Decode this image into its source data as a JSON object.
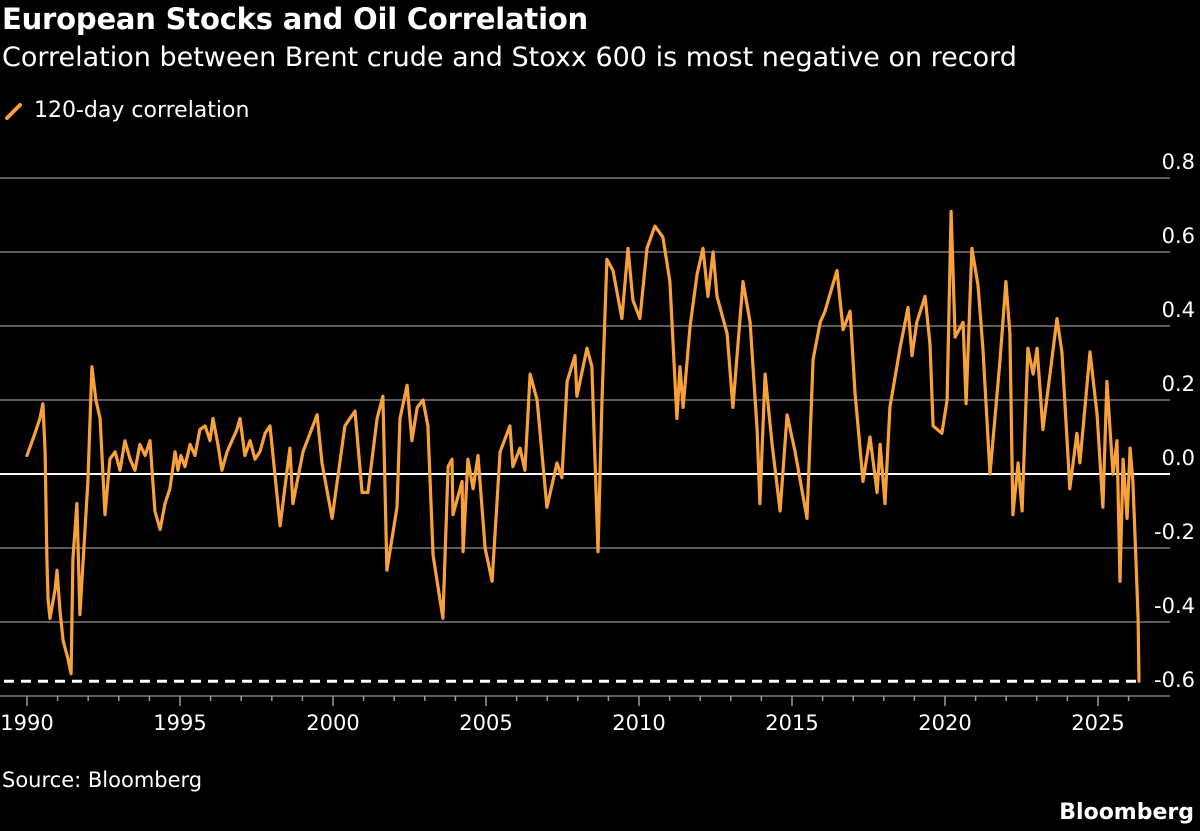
{
  "chart_data": {
    "type": "line",
    "title": "European Stocks and Oil Correlation",
    "subtitle": "Correlation between Brent crude and Stoxx 600 is most negative on record",
    "source": "Source: Bloomberg",
    "logo": "Bloomberg",
    "xlabel": "",
    "ylabel": "",
    "xlim": [
      1990,
      2026.6
    ],
    "ylim": [
      -0.6,
      0.8
    ],
    "x_ticks": [
      "1990",
      "1995",
      "2000",
      "2005",
      "2010",
      "2015",
      "2020",
      "2025"
    ],
    "y_ticks": [
      "0.8",
      "0.6",
      "0.4",
      "0.2",
      "0.0",
      "-0.2",
      "-0.4",
      "-0.6"
    ],
    "grid": true,
    "legend_position": "top-left",
    "reference_line": {
      "value": -0.56,
      "style": "dashed",
      "color": "#ffffff"
    },
    "series": [
      {
        "name": "120-day correlation",
        "color": "#f8a03a",
        "x": [
          1990.0,
          1990.26,
          1990.42,
          1990.52,
          1990.59,
          1990.65,
          1990.69,
          1990.75,
          1990.92,
          1990.98,
          1991.08,
          1991.18,
          1991.34,
          1991.44,
          1991.5,
          1991.63,
          1991.73,
          1991.99,
          1992.12,
          1992.25,
          1992.39,
          1992.55,
          1992.71,
          1992.88,
          1993.04,
          1993.2,
          1993.37,
          1993.53,
          1993.69,
          1993.86,
          1994.02,
          1994.18,
          1994.35,
          1994.51,
          1994.67,
          1994.84,
          1994.93,
          1995.03,
          1995.16,
          1995.33,
          1995.49,
          1995.65,
          1995.82,
          1995.98,
          1996.08,
          1996.24,
          1996.37,
          1996.54,
          1996.7,
          1996.86,
          1996.96,
          1997.12,
          1997.29,
          1997.45,
          1997.61,
          1997.78,
          1997.94,
          1998.27,
          1998.59,
          1998.69,
          1999.02,
          1999.48,
          1999.64,
          1999.97,
          2000.39,
          2000.72,
          2000.95,
          2001.14,
          2001.44,
          2001.63,
          2001.76,
          2002.09,
          2002.19,
          2002.42,
          2002.58,
          2002.75,
          2002.94,
          2003.1,
          2003.27,
          2003.59,
          2003.76,
          2003.89,
          2003.92,
          2004.22,
          2004.25,
          2004.41,
          2004.58,
          2004.74,
          2004.97,
          2005.2,
          2005.46,
          2005.78,
          2005.88,
          2006.11,
          2006.27,
          2006.44,
          2006.67,
          2006.99,
          2007.32,
          2007.48,
          2007.65,
          2007.91,
          2007.97,
          2008.3,
          2008.46,
          2008.66,
          2008.79,
          2008.95,
          2009.15,
          2009.44,
          2009.64,
          2009.8,
          2010.03,
          2010.26,
          2010.52,
          2010.78,
          2011.01,
          2011.24,
          2011.34,
          2011.44,
          2011.67,
          2011.9,
          2012.09,
          2012.25,
          2012.42,
          2012.55,
          2012.88,
          2013.07,
          2013.4,
          2013.63,
          2013.86,
          2013.95,
          2014.12,
          2014.35,
          2014.61,
          2014.84,
          2015.1,
          2015.49,
          2015.69,
          2015.92,
          2016.08,
          2016.47,
          2016.67,
          2016.9,
          2017.06,
          2017.32,
          2017.55,
          2017.78,
          2017.88,
          2018.04,
          2018.2,
          2018.53,
          2018.79,
          2018.92,
          2019.08,
          2019.35,
          2019.51,
          2019.61,
          2019.9,
          2020.07,
          2020.2,
          2020.33,
          2020.59,
          2020.69,
          2020.88,
          2021.08,
          2021.24,
          2021.47,
          2021.63,
          2021.8,
          2021.99,
          2022.12,
          2022.22,
          2022.39,
          2022.52,
          2022.71,
          2022.88,
          2023.01,
          2023.2,
          2023.43,
          2023.66,
          2023.82,
          2023.99,
          2024.08,
          2024.31,
          2024.41,
          2024.74,
          2024.97,
          2025.16,
          2025.29,
          2025.49,
          2025.62,
          2025.72,
          2025.82,
          2025.95,
          2026.05,
          2026.14,
          2026.24,
          2026.31,
          2026.34
        ],
        "y": [
          0.05,
          0.11,
          0.15,
          0.19,
          0.06,
          -0.23,
          -0.34,
          -0.39,
          -0.31,
          -0.26,
          -0.37,
          -0.45,
          -0.5,
          -0.54,
          -0.23,
          -0.08,
          -0.38,
          -0.02,
          0.29,
          0.2,
          0.15,
          -0.11,
          0.04,
          0.06,
          0.01,
          0.09,
          0.04,
          0.01,
          0.08,
          0.05,
          0.09,
          -0.1,
          -0.15,
          -0.08,
          -0.04,
          0.06,
          0.01,
          0.05,
          0.02,
          0.08,
          0.05,
          0.12,
          0.13,
          0.09,
          0.15,
          0.08,
          0.01,
          0.06,
          0.09,
          0.12,
          0.15,
          0.05,
          0.09,
          0.04,
          0.06,
          0.11,
          0.13,
          -0.14,
          0.07,
          -0.08,
          0.06,
          0.16,
          0.03,
          -0.12,
          0.13,
          0.17,
          -0.05,
          -0.05,
          0.15,
          0.21,
          -0.26,
          -0.09,
          0.15,
          0.24,
          0.09,
          0.18,
          0.2,
          0.13,
          -0.22,
          -0.39,
          0.02,
          0.04,
          -0.11,
          -0.02,
          -0.21,
          0.04,
          -0.04,
          0.05,
          -0.2,
          -0.29,
          0.06,
          0.13,
          0.02,
          0.07,
          0.01,
          0.27,
          0.2,
          -0.09,
          0.03,
          -0.01,
          0.25,
          0.32,
          0.21,
          0.34,
          0.29,
          -0.21,
          0.2,
          0.58,
          0.55,
          0.42,
          0.61,
          0.47,
          0.42,
          0.61,
          0.67,
          0.64,
          0.52,
          0.15,
          0.29,
          0.18,
          0.4,
          0.54,
          0.61,
          0.48,
          0.6,
          0.48,
          0.38,
          0.18,
          0.52,
          0.41,
          0.12,
          -0.08,
          0.27,
          0.08,
          -0.1,
          0.16,
          0.06,
          -0.12,
          0.31,
          0.41,
          0.44,
          0.55,
          0.39,
          0.44,
          0.22,
          -0.02,
          0.1,
          -0.05,
          0.08,
          -0.08,
          0.18,
          0.34,
          0.45,
          0.32,
          0.41,
          0.48,
          0.35,
          0.13,
          0.11,
          0.2,
          0.71,
          0.37,
          0.41,
          0.19,
          0.61,
          0.51,
          0.34,
          0.0,
          0.15,
          0.31,
          0.52,
          0.38,
          -0.11,
          0.03,
          -0.1,
          0.34,
          0.27,
          0.34,
          0.12,
          0.27,
          0.42,
          0.33,
          0.09,
          -0.04,
          0.11,
          0.03,
          0.33,
          0.16,
          -0.09,
          0.25,
          0.0,
          0.09,
          -0.29,
          0.04,
          -0.12,
          0.07,
          -0.02,
          -0.23,
          -0.39,
          -0.56
        ]
      }
    ]
  }
}
